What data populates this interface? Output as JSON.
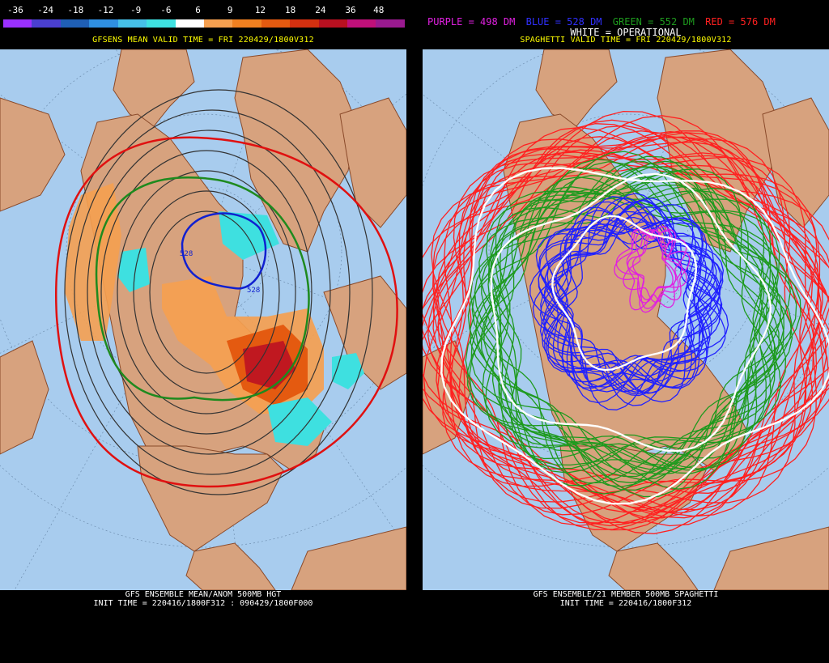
{
  "left": {
    "colorbar": {
      "labels": [
        "-36",
        "-24",
        "-18",
        "-12",
        "-9",
        "-6",
        "6",
        "9",
        "12",
        "18",
        "24",
        "36",
        "48"
      ],
      "colors": [
        "#9b30ff",
        "#4a3fd0",
        "#1f5fb5",
        "#2f8fe0",
        "#46c0e8",
        "#3ee0e0",
        "#ffffff",
        "#f5a050",
        "#f08020",
        "#e45a10",
        "#d43010",
        "#b81020",
        "#c0107a",
        "#9a1a90"
      ]
    },
    "valid_time": "GFSENS MEAN VALID TIME = FRI 220429/1800V312",
    "contour_label_1": "528",
    "contour_label_2": "528",
    "footer_line1": "GFS ENSEMBLE MEAN/ANOM 500MB HGT",
    "footer_line2": "INIT TIME = 220416/1800F312 : 090429/1800F000"
  },
  "right": {
    "legend": [
      {
        "text": "PURPLE = 498 DM",
        "color": "#e020e0"
      },
      {
        "text": "BLUE = 528 DM",
        "color": "#3030ff"
      },
      {
        "text": "GREEN = 552 DM",
        "color": "#1e9a1e"
      },
      {
        "text": "RED = 576 DM",
        "color": "#ff2020"
      }
    ],
    "operational": "WHITE = OPERATIONAL",
    "valid_time": "SPAGHETTI VALID TIME = FRI 220429/1800V312",
    "footer_line1": "GFS ENSEMBLE/21 MEMBER 500MB SPAGHETTI",
    "footer_line2": "INIT TIME = 220416/1800F312"
  },
  "colors": {
    "ocean": "#a8ccee",
    "land": "#d7a27e",
    "coast": "#8a4a2a"
  }
}
